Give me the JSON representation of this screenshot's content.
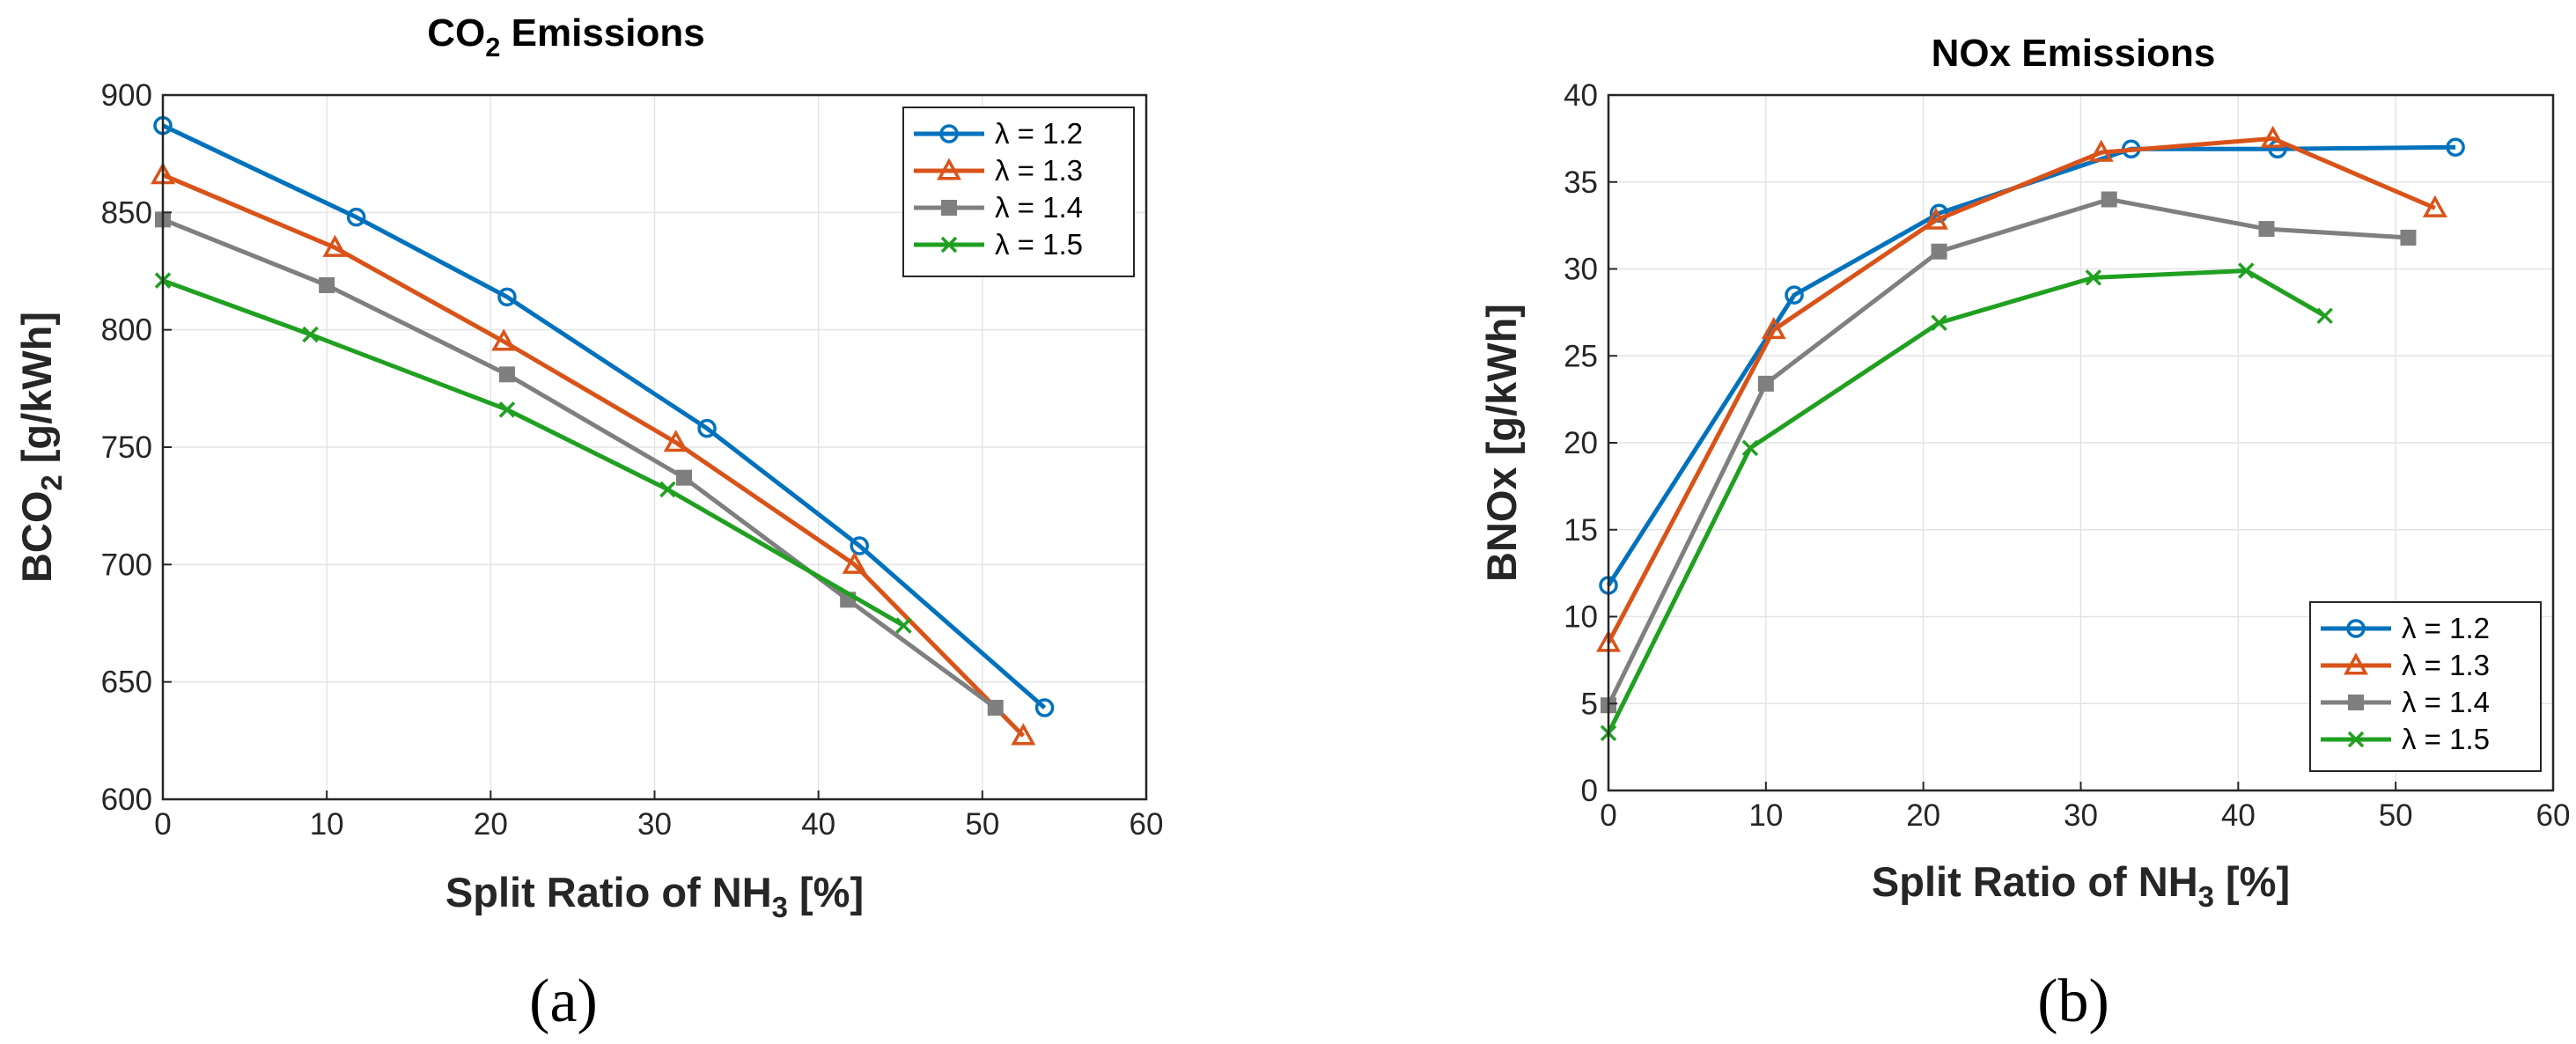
{
  "chart_data": [
    {
      "type": "line",
      "title_main": "CO",
      "title_sub": "2",
      "title_rest": " Emissions",
      "xlabel_main": "Split Ratio of NH",
      "xlabel_sub": "3",
      "xlabel_rest": " [%]",
      "ylabel_main": "BCO",
      "ylabel_sub": "2",
      "ylabel_rest": " [g/kWh]",
      "xlim": [
        0,
        60
      ],
      "ylim": [
        600,
        900
      ],
      "xticks": [
        0,
        10,
        20,
        30,
        40,
        50,
        60
      ],
      "yticks": [
        600,
        650,
        700,
        750,
        800,
        850,
        900
      ],
      "grid": true,
      "legend_position": "top-right",
      "panel_label": "(a)",
      "series": [
        {
          "name": "λ = 1.2",
          "color": "#0072BD",
          "marker": "circle",
          "x": [
            0,
            11.8,
            21,
            33.2,
            42.5,
            53.8
          ],
          "y": [
            887,
            848,
            814,
            758,
            708,
            639
          ]
        },
        {
          "name": "λ = 1.3",
          "color": "#D95319",
          "marker": "triangle",
          "x": [
            0,
            10.5,
            20.8,
            31.3,
            42.2,
            52.5
          ],
          "y": [
            866,
            835,
            795,
            752,
            700,
            627
          ]
        },
        {
          "name": "λ = 1.4",
          "color": "#7F7F7F",
          "marker": "square",
          "x": [
            0,
            10,
            21,
            31.8,
            41.8,
            50.8
          ],
          "y": [
            847,
            819,
            781,
            737,
            685,
            639
          ]
        },
        {
          "name": "λ = 1.5",
          "color": "#20A020",
          "marker": "x",
          "x": [
            0,
            9,
            21,
            30.8,
            45.2
          ],
          "y": [
            821,
            798,
            766,
            732,
            674
          ]
        }
      ]
    },
    {
      "type": "line",
      "title_main": "NOx Emissions",
      "title_sub": "",
      "title_rest": "",
      "xlabel_main": "Split Ratio of NH",
      "xlabel_sub": "3",
      "xlabel_rest": " [%]",
      "ylabel_main": "BNOx [g/kWh]",
      "ylabel_sub": "",
      "ylabel_rest": "",
      "xlim": [
        0,
        60
      ],
      "ylim": [
        0,
        40
      ],
      "xticks": [
        0,
        10,
        20,
        30,
        40,
        50,
        60
      ],
      "yticks": [
        0,
        5,
        10,
        15,
        20,
        25,
        30,
        35,
        40
      ],
      "grid": true,
      "legend_position": "bottom-right",
      "panel_label": "(b)",
      "series": [
        {
          "name": "λ = 1.2",
          "color": "#0072BD",
          "marker": "circle",
          "x": [
            0,
            11.8,
            21,
            33.2,
            42.5,
            53.8
          ],
          "y": [
            11.8,
            28.5,
            33.2,
            36.9,
            36.9,
            37.0
          ]
        },
        {
          "name": "λ = 1.3",
          "color": "#D95319",
          "marker": "triangle",
          "x": [
            0,
            10.5,
            20.8,
            31.3,
            42.2,
            52.5
          ],
          "y": [
            8.5,
            26.5,
            32.8,
            36.7,
            37.5,
            33.5
          ]
        },
        {
          "name": "λ = 1.4",
          "color": "#7F7F7F",
          "marker": "square",
          "x": [
            0,
            10,
            21,
            31.8,
            41.8,
            50.8
          ],
          "y": [
            4.9,
            23.4,
            31.0,
            34.0,
            32.3,
            31.8
          ]
        },
        {
          "name": "λ = 1.5",
          "color": "#20A020",
          "marker": "x",
          "x": [
            0,
            9,
            21,
            30.8,
            40.5,
            45.5
          ],
          "y": [
            3.3,
            19.7,
            26.9,
            29.5,
            29.9,
            27.3
          ]
        }
      ]
    }
  ]
}
